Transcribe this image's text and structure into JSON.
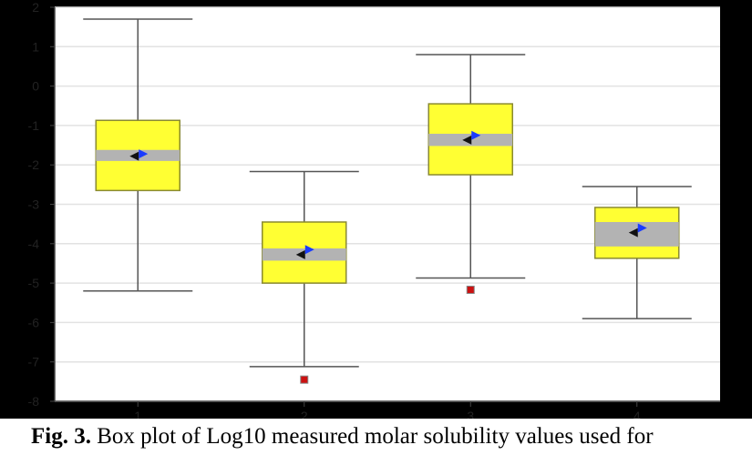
{
  "colors": {
    "page_background": "#000000",
    "plot_background": "#ffffff",
    "grid": "#e2e2e2",
    "box_fill": "#ffff33",
    "box_stroke": "#8a8a30",
    "ci_band": "#b3b3b3",
    "whisker": "#555555",
    "outlier": "#cc1111",
    "mean_marker": "#111111",
    "median_marker": "#1a3bff"
  },
  "chart_data": {
    "type": "box",
    "categories": [
      "1",
      "2",
      "3",
      "4"
    ],
    "yticks": [
      "2",
      "1",
      "0",
      "-1",
      "-2",
      "-3",
      "-4",
      "-5",
      "-6",
      "-7",
      "-8"
    ],
    "ylim": [
      -8,
      2
    ],
    "grid": "horizontal",
    "series": [
      {
        "category": "1",
        "whisker_low": -5.2,
        "q1": -2.65,
        "ci_low": -1.9,
        "ci_high": -1.62,
        "q3": -0.87,
        "whisker_high": 1.7,
        "mean": -1.78,
        "median": -1.72,
        "outliers": []
      },
      {
        "category": "2",
        "whisker_low": -7.12,
        "q1": -5.0,
        "ci_low": -4.43,
        "ci_high": -4.12,
        "q3": -3.45,
        "whisker_high": -2.17,
        "mean": -4.28,
        "median": -4.15,
        "outliers": [
          -7.45
        ]
      },
      {
        "category": "3",
        "whisker_low": -4.87,
        "q1": -2.25,
        "ci_low": -1.52,
        "ci_high": -1.21,
        "q3": -0.45,
        "whisker_high": 0.8,
        "mean": -1.37,
        "median": -1.25,
        "outliers": [
          -5.17
        ]
      },
      {
        "category": "4",
        "whisker_low": -5.9,
        "q1": -4.37,
        "ci_low": -4.07,
        "ci_high": -3.45,
        "q3": -3.08,
        "whisker_high": -2.55,
        "mean": -3.72,
        "median": -3.6,
        "outliers": []
      }
    ]
  },
  "caption": {
    "lead": "Fig. 3.",
    "text": "Box plot of Log10 measured molar solubility values used for"
  }
}
